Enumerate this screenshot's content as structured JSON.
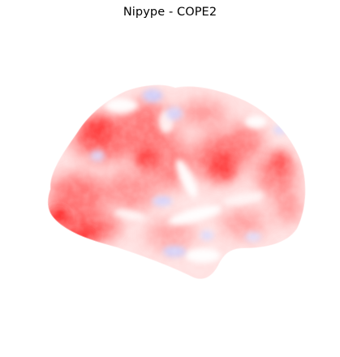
{
  "figure": {
    "title": "Nipype - COPE2"
  },
  "colors": {
    "background": "#ffffff",
    "positive": "#ff0000",
    "neutral": "#ffffff",
    "negative": "#0000ff",
    "colormap": "bwr"
  },
  "surface": {
    "hemisphere_view": "lateral",
    "shape": "inflated-brain"
  }
}
